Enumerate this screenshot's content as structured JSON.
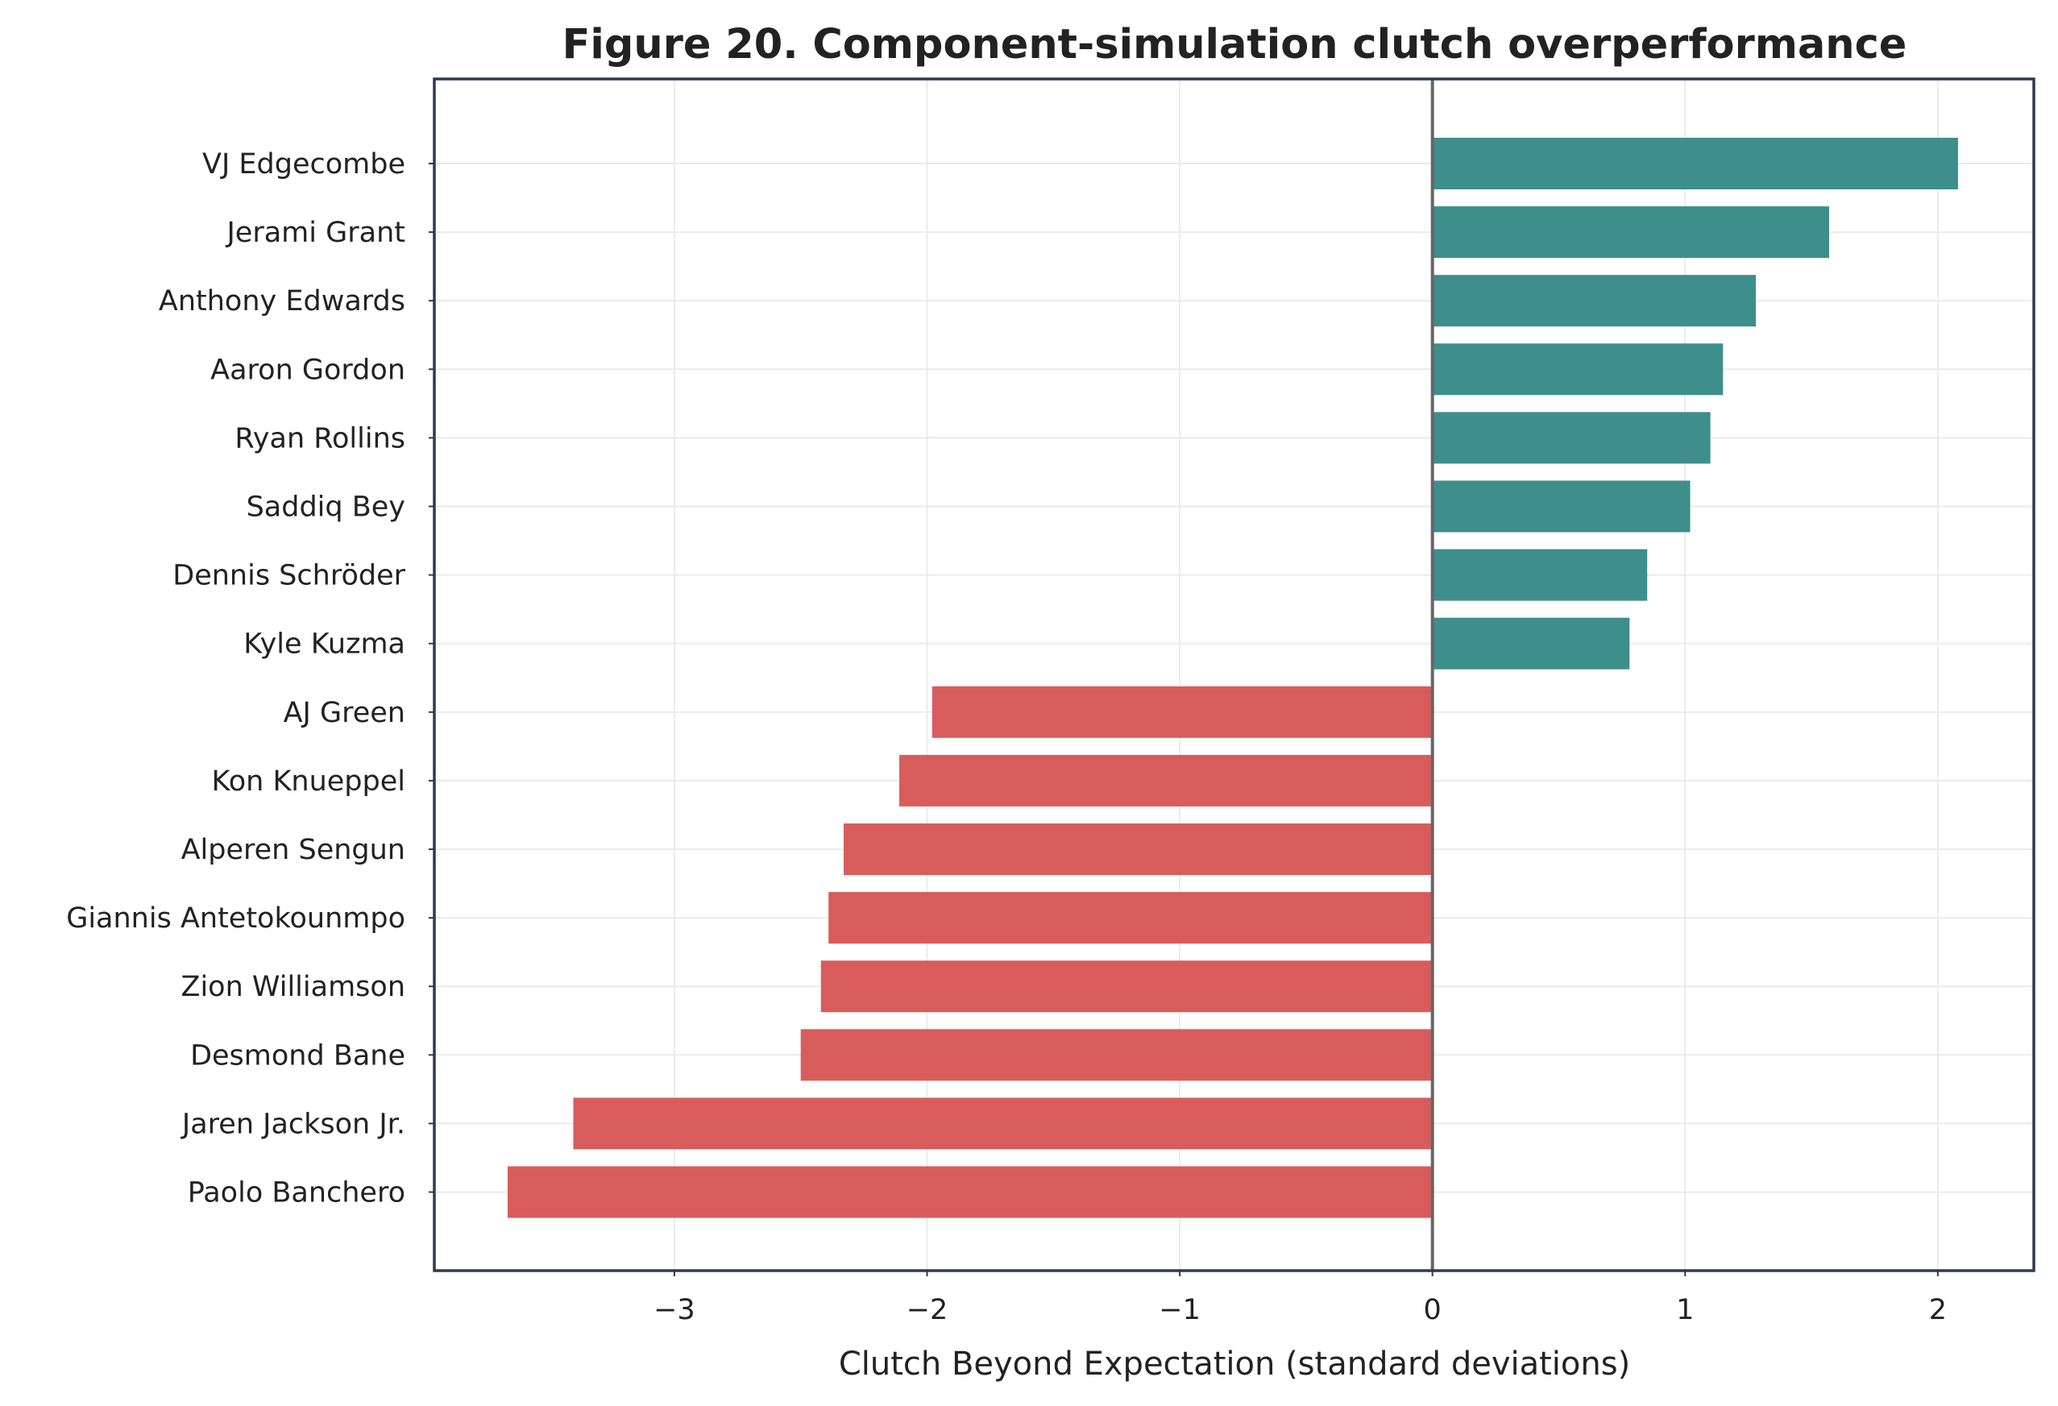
{
  "chart_data": {
    "type": "bar",
    "orientation": "horizontal",
    "title": "Figure 20. Component-simulation clutch overperformance",
    "xlabel": "Clutch Beyond Expectation (standard deviations)",
    "ylabel": "",
    "xlim": [
      -3.95,
      2.38
    ],
    "xticks": [
      -3,
      -2,
      -1,
      0,
      1,
      2
    ],
    "xtick_labels": [
      "−3",
      "−2",
      "−1",
      "0",
      "1",
      "2"
    ],
    "grid": true,
    "positive_color": "#3e8e8c",
    "negative_color": "#d95c5c",
    "categories": [
      "VJ Edgecombe",
      "Jerami Grant",
      "Anthony Edwards",
      "Aaron Gordon",
      "Ryan Rollins",
      "Saddiq Bey",
      "Dennis Schröder",
      "Kyle Kuzma",
      "AJ Green",
      "Kon Knueppel",
      "Alperen Sengun",
      "Giannis Antetokounmpo",
      "Zion Williamson",
      "Desmond Bane",
      "Jaren Jackson Jr.",
      "Paolo Banchero"
    ],
    "values": [
      2.08,
      1.57,
      1.28,
      1.15,
      1.1,
      1.02,
      0.85,
      0.78,
      -1.98,
      -2.11,
      -2.33,
      -2.39,
      -2.42,
      -2.5,
      -3.4,
      -3.66
    ]
  }
}
